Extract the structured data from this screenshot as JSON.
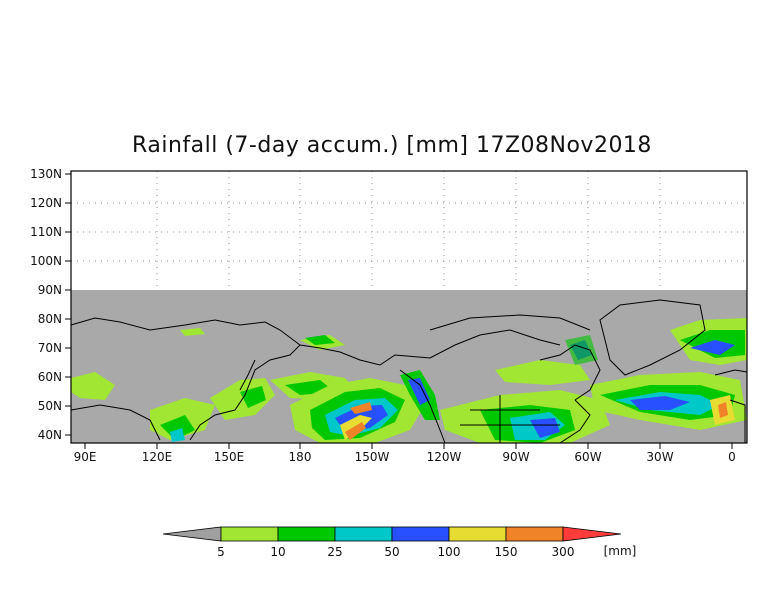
{
  "map": {
    "title": "Rainfall (7-day accum.) [mm] 17Z08Nov2018",
    "lat_labels": [
      "130N",
      "120N",
      "110N",
      "100N",
      "90N",
      "80N",
      "70N",
      "60N",
      "50N",
      "40N"
    ],
    "lon_labels": [
      "90E",
      "120E",
      "150E",
      "180",
      "150W",
      "120W",
      "90W",
      "60W",
      "30W",
      "0"
    ],
    "no_data_color": "#a9a9a9",
    "gridlines": "dotted"
  },
  "legend": {
    "ticks": [
      "5",
      "10",
      "25",
      "50",
      "100",
      "150",
      "300"
    ],
    "unit": "[mm]",
    "colors": [
      "#a0a0a0",
      "#a0e632",
      "#00c800",
      "#00c8c8",
      "#2850ff",
      "#e6dc32",
      "#f08228",
      "#ff3c3c"
    ]
  }
}
